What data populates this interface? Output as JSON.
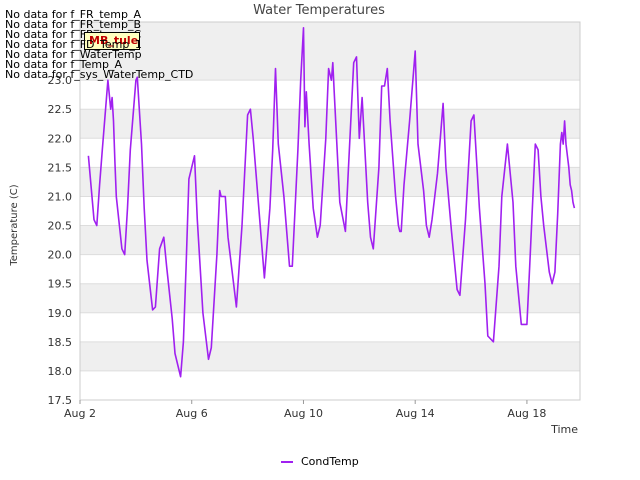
{
  "no_data_messages": [
    "No data for f_FR_temp_A",
    "No data for f_FR_temp_B",
    "No data for f_FR_temp_C",
    "No data for f_FD_Temp_1",
    "No data for f_WaterTemp",
    "No data for f_Temp_A",
    "No data for f_sys_WaterTemp_CTD"
  ],
  "tooltip_label": "MB_tule",
  "colors": {
    "series": "#a020f0",
    "band": "#efefef",
    "grid": "#dddddd",
    "text": "#333333"
  },
  "chart_data": {
    "type": "line",
    "title": "Water Temperatures",
    "xlabel": "Time",
    "ylabel": "Temperature (C)",
    "xlim": [
      2.0,
      19.9
    ],
    "ylim": [
      17.5,
      24.0
    ],
    "x_ticks": [
      2,
      6,
      10,
      14,
      18
    ],
    "x_tick_labels": [
      "Aug 2",
      "Aug 6",
      "Aug 10",
      "Aug 14",
      "Aug 18"
    ],
    "y_ticks": [
      17.5,
      18.0,
      18.5,
      19.0,
      19.5,
      20.0,
      20.5,
      21.0,
      21.5,
      22.0,
      22.5,
      23.0
    ],
    "y_tick_labels": [
      "17.5",
      "18.0",
      "18.5",
      "19.0",
      "19.5",
      "20.0",
      "20.5",
      "21.0",
      "21.5",
      "22.0",
      "22.5",
      "23.0"
    ],
    "legend": [
      "CondTemp"
    ],
    "series": [
      {
        "name": "CondTemp",
        "x": [
          2.3,
          2.5,
          2.6,
          2.7,
          2.8,
          3.0,
          3.1,
          3.15,
          3.2,
          3.25,
          3.3,
          3.5,
          3.6,
          3.7,
          3.8,
          4.0,
          4.05,
          4.2,
          4.3,
          4.4,
          4.6,
          4.7,
          4.85,
          5.0,
          5.1,
          5.3,
          5.4,
          5.6,
          5.7,
          5.8,
          5.9,
          6.0,
          6.1,
          6.2,
          6.4,
          6.6,
          6.7,
          6.9,
          7.0,
          7.05,
          7.2,
          7.3,
          7.5,
          7.6,
          7.8,
          8.0,
          8.1,
          8.2,
          8.4,
          8.6,
          8.8,
          8.9,
          9.0,
          9.1,
          9.3,
          9.5,
          9.6,
          9.8,
          9.9,
          10.0,
          10.05,
          10.1,
          10.2,
          10.35,
          10.5,
          10.6,
          10.8,
          10.9,
          11.0,
          11.05,
          11.1,
          11.3,
          11.5,
          11.6,
          11.8,
          11.9,
          12.0,
          12.1,
          12.3,
          12.4,
          12.5,
          12.7,
          12.8,
          12.9,
          13.0,
          13.1,
          13.3,
          13.4,
          13.45,
          13.5,
          13.6,
          13.8,
          14.0,
          14.1,
          14.3,
          14.4,
          14.5,
          14.6,
          14.8,
          15.0,
          15.1,
          15.3,
          15.5,
          15.6,
          15.8,
          16.0,
          16.1,
          16.3,
          16.5,
          16.6,
          16.8,
          17.0,
          17.1,
          17.3,
          17.5,
          17.6,
          17.8,
          18.0,
          18.1,
          18.3,
          18.4,
          18.5,
          18.6,
          18.7,
          18.8,
          18.9,
          19.0,
          19.1,
          19.2
        ],
        "values": [
          21.7,
          20.6,
          20.5,
          21.2,
          21.8,
          23.0,
          22.5,
          22.7,
          22.3,
          21.6,
          21.0,
          20.1,
          20.0,
          20.8,
          21.8,
          23.0,
          23.05,
          21.9,
          20.8,
          19.9,
          19.05,
          19.1,
          20.1,
          20.3,
          19.8,
          18.9,
          18.3,
          17.9,
          18.5,
          19.8,
          21.3,
          21.5,
          21.7,
          20.6,
          19.0,
          18.2,
          18.4,
          20.0,
          21.1,
          21.0,
          21.0,
          20.3,
          19.5,
          19.1,
          20.5,
          22.4,
          22.5,
          22.0,
          20.8,
          19.6,
          20.8,
          21.8,
          23.2,
          21.9,
          21.0,
          19.8,
          19.8,
          21.8,
          23.0,
          23.9,
          22.2,
          22.8,
          21.9,
          20.8,
          20.3,
          20.5,
          22.0,
          23.2,
          23.0,
          23.3,
          22.8,
          20.9,
          20.4,
          21.4,
          23.3,
          23.4,
          22.0,
          22.7,
          20.9,
          20.3,
          20.1,
          21.5,
          22.9,
          22.9,
          23.2,
          22.3,
          21.0,
          20.5,
          20.4,
          20.4,
          21.2,
          22.3,
          23.5,
          21.9,
          21.1,
          20.5,
          20.3,
          20.6,
          21.4,
          22.6,
          21.5,
          20.4,
          19.4,
          19.3,
          20.6,
          22.3,
          22.4,
          20.8,
          19.5,
          18.6,
          18.5,
          19.8,
          21.0,
          21.9,
          20.9,
          19.8,
          18.8,
          18.8,
          19.8,
          21.9,
          21.8,
          21.0,
          20.5,
          20.1,
          19.7,
          19.5,
          19.7,
          20.7,
          21.9
        ],
        "tail_x": [
          19.2,
          19.25,
          19.3,
          19.35,
          19.4,
          19.45,
          19.5,
          19.55,
          19.6,
          19.65,
          19.7
        ],
        "tail_values": [
          21.9,
          22.1,
          21.9,
          22.3,
          21.9,
          21.7,
          21.5,
          21.2,
          21.1,
          20.9,
          20.8
        ]
      }
    ]
  }
}
